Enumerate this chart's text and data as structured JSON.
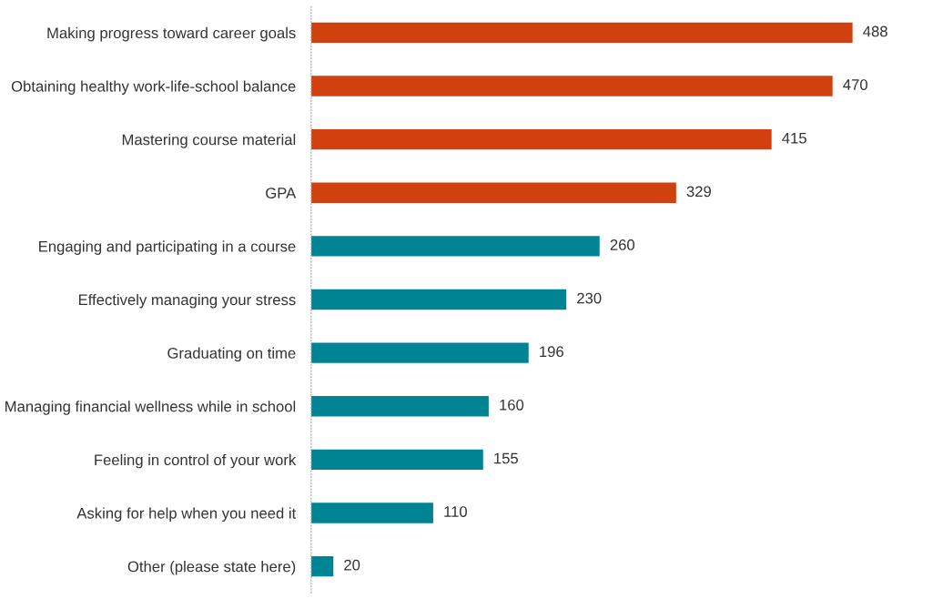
{
  "chart_data": {
    "type": "bar",
    "orientation": "horizontal",
    "categories": [
      "Making progress toward career goals",
      "Obtaining healthy work-life-school balance",
      "Mastering course material",
      "GPA",
      "Engaging and participating in a course",
      "Effectively managing your stress",
      "Graduating on time",
      "Managing financial wellness while in school",
      "Feeling in control of your work",
      "Asking for help when you need it",
      "Other (please state here)"
    ],
    "values": [
      488,
      470,
      415,
      329,
      260,
      230,
      196,
      160,
      155,
      110,
      20
    ],
    "colors": [
      "#d0410f",
      "#d0410f",
      "#d0410f",
      "#d0410f",
      "#008493",
      "#008493",
      "#008493",
      "#008493",
      "#008493",
      "#008493",
      "#008493"
    ],
    "data_labels": true,
    "grid": false,
    "legend": false
  }
}
